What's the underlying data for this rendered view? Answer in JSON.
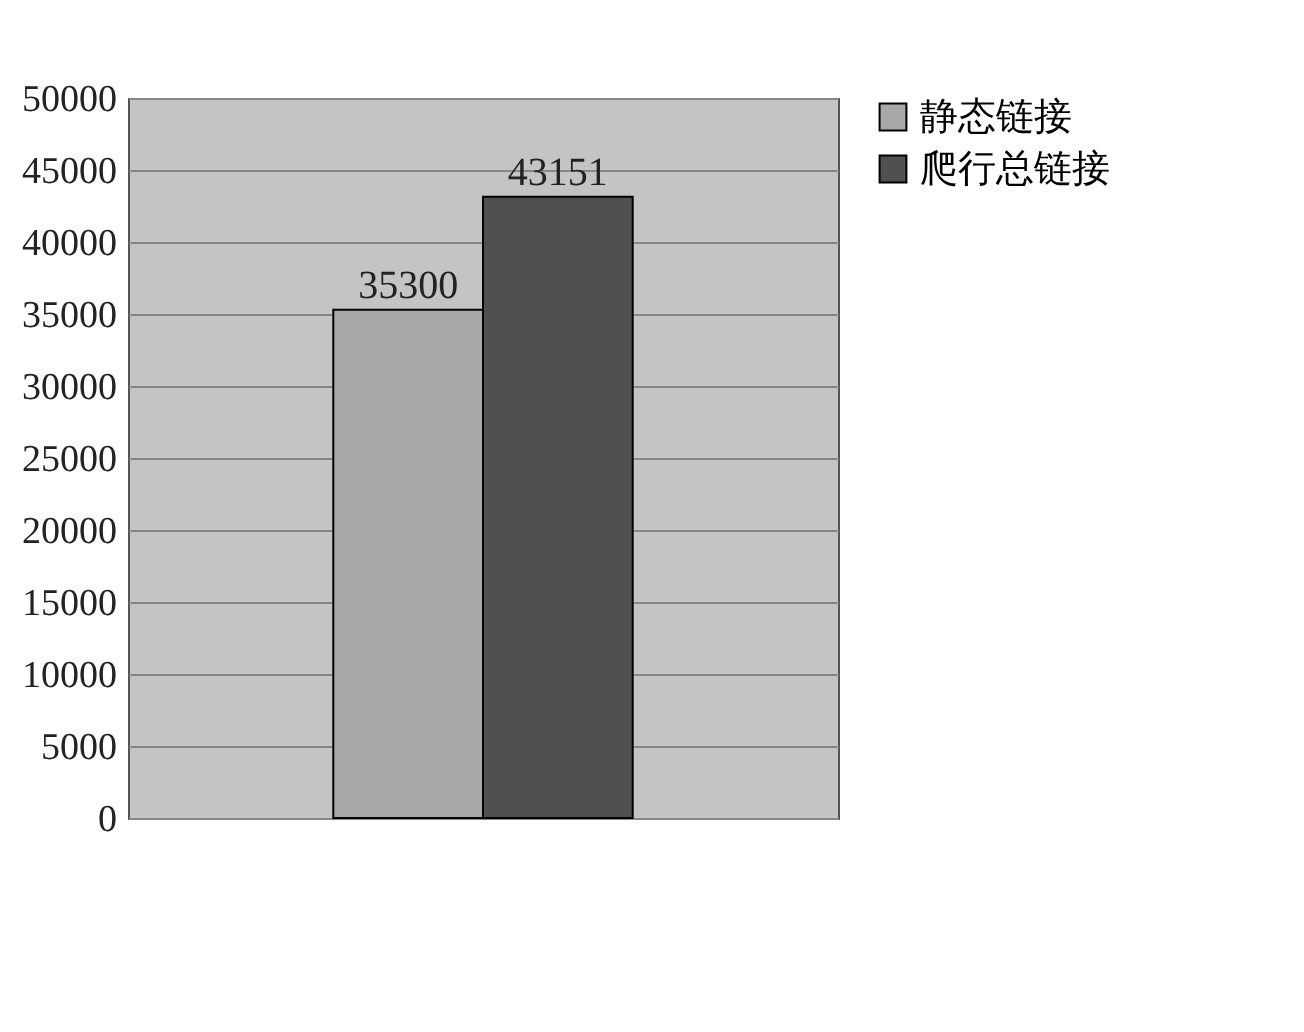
{
  "chart_data": {
    "type": "bar",
    "categories": [
      null
    ],
    "series": [
      {
        "name": "静态链接",
        "color": "#a8a8a8",
        "values": [
          35300
        ]
      },
      {
        "name": "爬行总链接",
        "color": "#505050",
        "values": [
          43151
        ]
      }
    ],
    "ylim": [
      0,
      50000
    ],
    "yticks": [
      0,
      5000,
      10000,
      15000,
      20000,
      25000,
      30000,
      35000,
      40000,
      45000,
      50000
    ],
    "grid": "y",
    "legend": "right",
    "data_labels": true
  }
}
